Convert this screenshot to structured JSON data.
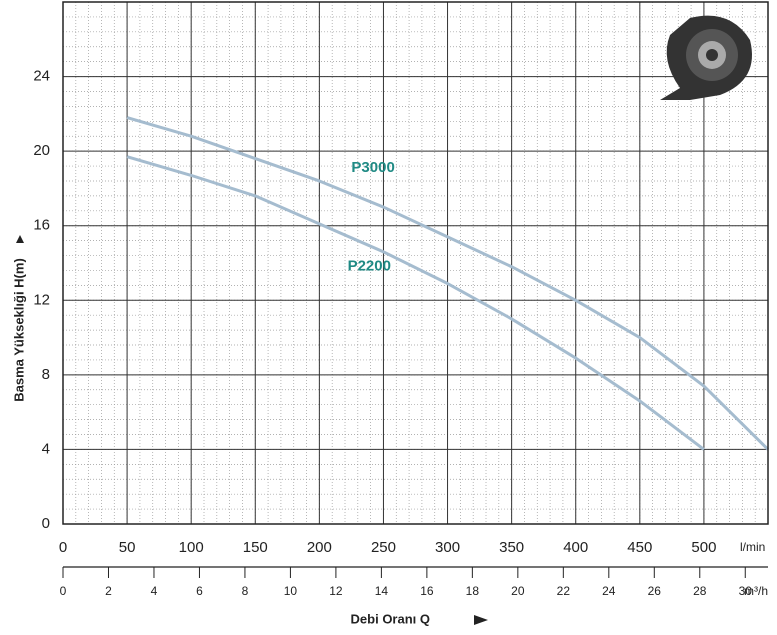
{
  "chart_data": {
    "type": "line",
    "ylabel": "Basma Yükseklıği H(m)",
    "xlabel": "Debi Oranı Q",
    "x_unit": "l/min",
    "x2_unit": "m³/h",
    "x": [
      50,
      100,
      150,
      200,
      250,
      300,
      350,
      400,
      450,
      500,
      550
    ],
    "series": [
      {
        "name": "P3000",
        "color": "#a5bccf",
        "values": [
          21.8,
          20.8,
          19.6,
          18.4,
          17.0,
          15.4,
          13.8,
          12.0,
          10.0,
          7.4,
          4.0
        ]
      },
      {
        "name": "P2200",
        "color": "#a5bccf",
        "values": [
          19.7,
          18.7,
          17.6,
          16.1,
          14.6,
          12.9,
          11.0,
          8.9,
          6.6,
          4.0,
          null
        ]
      }
    ],
    "annotations": [
      {
        "text": "P3000",
        "x": 225,
        "y": 19.1
      },
      {
        "text": "P2200",
        "x": 222,
        "y": 13.8
      }
    ],
    "xlim": [
      0,
      550
    ],
    "xticks": [
      0,
      50,
      100,
      150,
      200,
      250,
      300,
      350,
      400,
      450,
      500
    ],
    "ylim": [
      0,
      28
    ],
    "yticks": [
      0,
      4,
      8,
      12,
      16,
      20,
      24
    ],
    "x2lim": [
      0,
      31
    ],
    "x2ticks": [
      0,
      2,
      4,
      6,
      8,
      10,
      12,
      14,
      16,
      18,
      20,
      22,
      24,
      26,
      28,
      30
    ],
    "grid": true
  }
}
